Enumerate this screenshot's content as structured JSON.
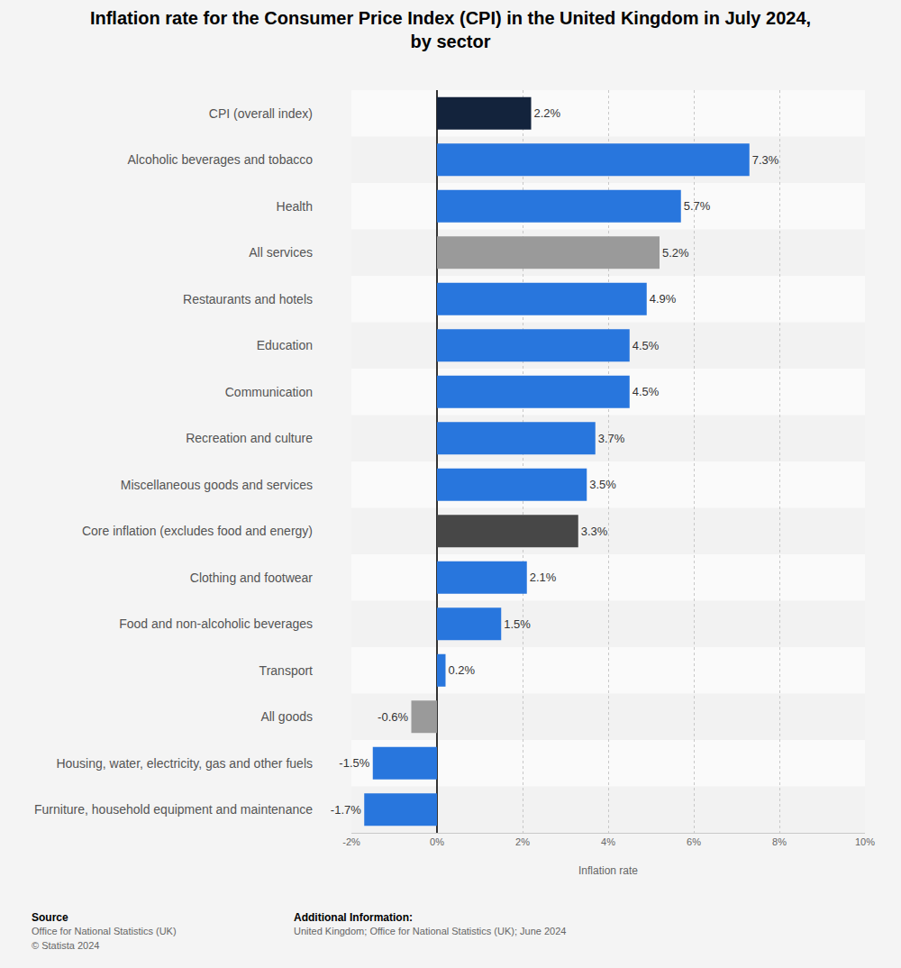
{
  "chart_data": {
    "type": "bar",
    "orientation": "horizontal",
    "title": "Inflation rate for the Consumer Price Index (CPI) in the United Kingdom in July 2024,\nby sector",
    "xlabel": "Inflation rate",
    "categories": [
      "CPI (overall index)",
      "Alcoholic beverages and tobacco",
      "Health",
      "All services",
      "Restaurants and hotels",
      "Education",
      "Communication",
      "Recreation and culture",
      "Miscellaneous goods and services",
      "Core inflation (excludes food and energy)",
      "Clothing and footwear",
      "Food and non-alcoholic beverages",
      "Transport",
      "All goods",
      "Housing, water, electricity, gas and other fuels",
      "Furniture, household equipment and maintenance"
    ],
    "values": [
      2.2,
      7.3,
      5.7,
      5.2,
      4.9,
      4.5,
      4.5,
      3.7,
      3.5,
      3.3,
      2.1,
      1.5,
      0.2,
      -0.6,
      -1.5,
      -1.7
    ],
    "value_labels": [
      "2.2%",
      "7.3%",
      "5.7%",
      "5.2%",
      "4.9%",
      "4.5%",
      "4.5%",
      "3.7%",
      "3.5%",
      "3.3%",
      "2.1%",
      "1.5%",
      "0.2%",
      "-0.6%",
      "-1.5%",
      "-1.7%"
    ],
    "colors": [
      "#13233c",
      "#2876dd",
      "#2876dd",
      "#9a9a9a",
      "#2876dd",
      "#2876dd",
      "#2876dd",
      "#2876dd",
      "#2876dd",
      "#474747",
      "#2876dd",
      "#2876dd",
      "#2876dd",
      "#9a9a9a",
      "#2876dd",
      "#2876dd"
    ],
    "data_labels": true,
    "xlim": [
      -2,
      10
    ],
    "xticks": [
      {
        "value": -2,
        "label": "-2%"
      },
      {
        "value": 0,
        "label": "0%"
      },
      {
        "value": 2,
        "label": "2%"
      },
      {
        "value": 4,
        "label": "4%"
      },
      {
        "value": 6,
        "label": "6%"
      },
      {
        "value": 8,
        "label": "8%"
      },
      {
        "value": 10,
        "label": "10%"
      }
    ],
    "grid": true,
    "annotations": [
      [
        "Source",
        "Office for National Statistics (UK)",
        "© Statista 2024"
      ],
      [
        "Additional Information:",
        "United Kingdom; Office for National Statistics (UK); June 2024"
      ]
    ]
  }
}
